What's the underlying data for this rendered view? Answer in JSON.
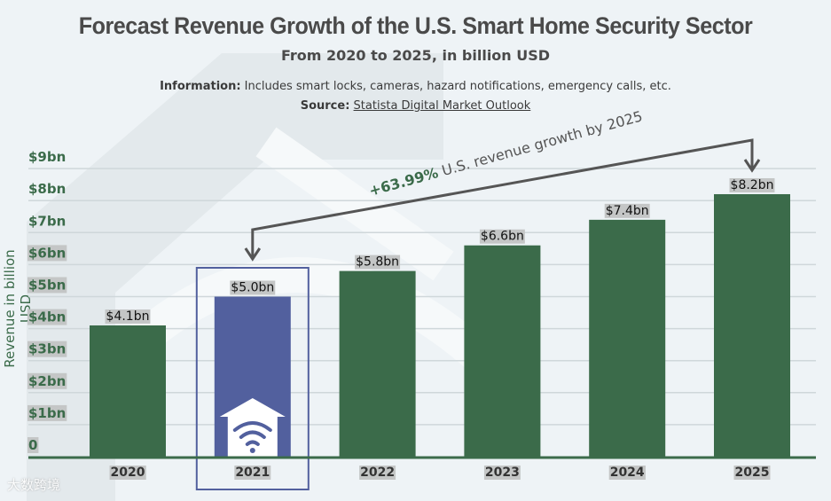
{
  "header": {
    "title": "Forecast Revenue Growth of the U.S. Smart Home Security Sector",
    "subtitle": "From 2020 to 2025, in billion USD",
    "info_label": "Information:",
    "info_text": " Includes smart locks, cameras, hazard notifications, emergency calls, etc.",
    "source_label": "Source:",
    "source_link": "Statista Digital Market Outlook"
  },
  "watermark": "大数跨境",
  "colors": {
    "bar": "#3b6b4a",
    "highlight": "#52609e",
    "axis": "#3b6b4a",
    "annotation": "#555555"
  },
  "chart_data": {
    "type": "bar",
    "title": "Forecast Revenue Growth of the U.S. Smart Home Security Sector",
    "xlabel": "",
    "ylabel": "Revenue in billion USD",
    "ylim": [
      0,
      9
    ],
    "yticks": [
      0,
      1,
      2,
      3,
      4,
      5,
      6,
      7,
      8,
      9
    ],
    "ytick_labels": [
      "0",
      "$1bn",
      "$2bn",
      "$3bn",
      "$4bn",
      "$5bn",
      "$6bn",
      "$7bn",
      "$8bn",
      "$9bn"
    ],
    "categories": [
      "2020",
      "2021",
      "2022",
      "2023",
      "2024",
      "2025"
    ],
    "values": [
      4.1,
      5.0,
      5.8,
      6.6,
      7.4,
      8.2
    ],
    "data_labels": [
      "$4.1bn",
      "$5.0bn",
      "$5.8bn",
      "$6.6bn",
      "$7.4bn",
      "$8.2bn"
    ],
    "highlight": "2021",
    "grid": true,
    "annotation": {
      "bold": "+63.99%",
      "text": " U.S. revenue growth by 2025",
      "from": "2021",
      "to": "2025"
    }
  }
}
